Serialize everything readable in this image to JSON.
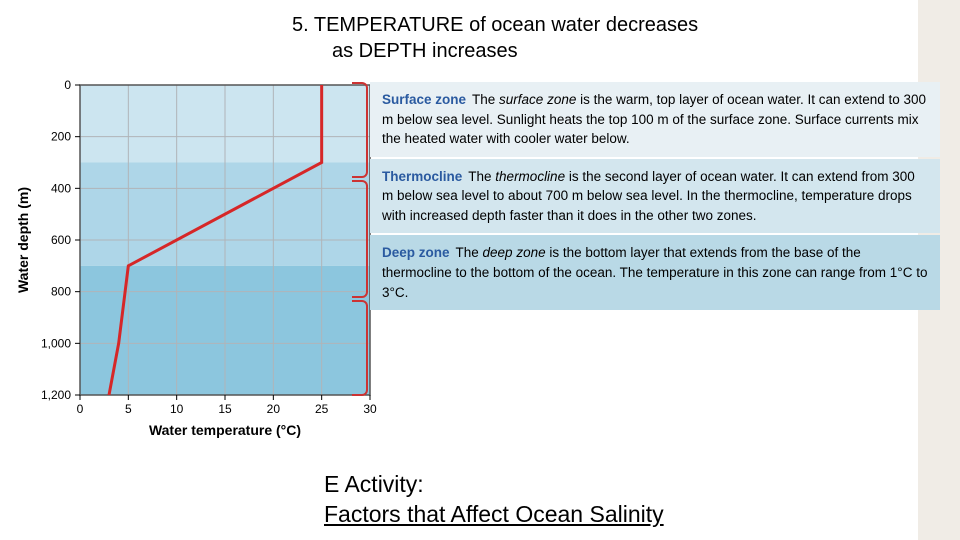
{
  "title_line1": "5.  TEMPERATURE of ocean water decreases",
  "title_line2": "as DEPTH increases",
  "chart": {
    "type": "line",
    "x_label": "Water temperature (°C)",
    "y_label": "Water depth (m)",
    "xlim": [
      0,
      30
    ],
    "ylim": [
      1200,
      0
    ],
    "xticks": [
      0,
      5,
      10,
      15,
      20,
      25,
      30
    ],
    "yticks": [
      0,
      200,
      400,
      600,
      800,
      1000,
      1200
    ],
    "ytick_labels": [
      "0",
      "200",
      "400",
      "600",
      "800",
      "1,000",
      "1,200"
    ],
    "line_color": "#d62728",
    "line_width": 3,
    "background_color": "#ffffff",
    "grid_color": "#b0b4b8",
    "band_colors": [
      "#cce5f0",
      "#aed6e8",
      "#8cc6de"
    ],
    "band_boundaries_depth": [
      300,
      700
    ],
    "data_points": [
      {
        "temp": 25,
        "depth": 0
      },
      {
        "temp": 25,
        "depth": 300
      },
      {
        "temp": 5,
        "depth": 700
      },
      {
        "temp": 4,
        "depth": 1000
      },
      {
        "temp": 3,
        "depth": 1200
      }
    ],
    "axis_font_size": 12,
    "label_font_size": 14,
    "label_font_weight": "bold"
  },
  "zones": [
    {
      "title": "Surface zone",
      "text_before_em": "The ",
      "em": "surface zone",
      "text_after_em": " is the warm, top layer of ocean water. It can extend to 300 m below sea level. Sunlight heats the top 100 m of the surface zone. Surface currents mix the heated water with cooler water below.",
      "bg": "#e8f0f4",
      "bracket_top": 0,
      "bracket_height": 96
    },
    {
      "title": "Thermocline",
      "text_before_em": "The ",
      "em": "thermocline",
      "text_after_em": " is the second layer of ocean water. It can extend from 300 m below sea level to about 700 m below sea level. In the thermocline, temperature drops with increased depth faster than it does in the other two zones.",
      "bg": "#d3e6ee",
      "bracket_top": 98,
      "bracket_height": 118
    },
    {
      "title": "Deep zone",
      "text_before_em": "The ",
      "em": "deep zone",
      "text_after_em": " is the bottom layer that extends from the base of the thermocline to the bottom of the ocean. The temperature in this zone can range from 1°C to 3°C.",
      "bg": "#b9d9e6",
      "bracket_top": 218,
      "bracket_height": 96
    }
  ],
  "activity_label": "E Activity:",
  "activity_link_text": "Factors that Affect Ocean Salinity"
}
